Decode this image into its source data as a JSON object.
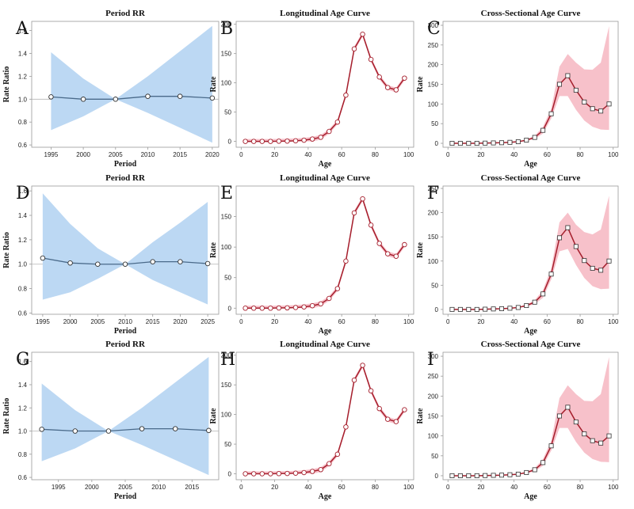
{
  "chart_data": [
    {
      "id": "A",
      "letter": "A",
      "type": "line",
      "title": "Period RR",
      "xlabel": "Period",
      "ylabel": "Rate Ratio",
      "xlim": [
        1992,
        2021
      ],
      "ylim": [
        0.58,
        1.68
      ],
      "xticks": [
        1995,
        2000,
        2005,
        2010,
        2015,
        2020
      ],
      "yticks": [
        0.6,
        0.8,
        1.0,
        1.2,
        1.4,
        1.6
      ],
      "x": [
        1995,
        2000,
        2005,
        2010,
        2015,
        2020
      ],
      "y": [
        1.02,
        1.0,
        1.0,
        1.025,
        1.025,
        1.01
      ],
      "ci_lower": [
        0.73,
        0.85,
        1.0,
        0.88,
        0.75,
        0.62
      ],
      "ci_upper": [
        1.41,
        1.18,
        1.0,
        1.2,
        1.42,
        1.64
      ],
      "reference": 1.0
    },
    {
      "id": "B",
      "letter": "B",
      "type": "line",
      "title": "Longitudinal Age Curve",
      "xlabel": "Age",
      "ylabel": "Rate",
      "xlim": [
        -3,
        103
      ],
      "ylim": [
        -10,
        205
      ],
      "xticks": [
        0,
        20,
        40,
        60,
        80,
        100
      ],
      "yticks": [
        0,
        50,
        100,
        150,
        200
      ],
      "x": [
        2.5,
        7.5,
        12.5,
        17.5,
        22.5,
        27.5,
        32.5,
        37.5,
        42.5,
        47.5,
        52.5,
        57.5,
        62.5,
        67.5,
        72.5,
        77.5,
        82.5,
        87.5,
        92.5,
        97.5
      ],
      "y": [
        0,
        0,
        0,
        0,
        0.3,
        0.5,
        1,
        2,
        4,
        7,
        17,
        33,
        79,
        158,
        183,
        140,
        110,
        92,
        88,
        108
      ],
      "ci_width": 4
    },
    {
      "id": "C",
      "letter": "C",
      "type": "line",
      "title": "Cross-Sectional Age Curve",
      "xlabel": "Age",
      "ylabel": "Rate",
      "xlim": [
        -3,
        103
      ],
      "ylim": [
        -10,
        310
      ],
      "xticks": [
        0,
        20,
        40,
        60,
        80,
        100
      ],
      "yticks": [
        0,
        50,
        100,
        150,
        200,
        250,
        300
      ],
      "x": [
        2.5,
        7.5,
        12.5,
        17.5,
        22.5,
        27.5,
        32.5,
        37.5,
        42.5,
        47.5,
        52.5,
        57.5,
        62.5,
        67.5,
        72.5,
        77.5,
        82.5,
        87.5,
        92.5,
        97.5
      ],
      "y": [
        0,
        0,
        0,
        0,
        0.5,
        1,
        1.5,
        2.5,
        4,
        8,
        15,
        33,
        75,
        150,
        172,
        135,
        105,
        88,
        82,
        100
      ],
      "ci_lower": [
        0,
        0,
        0,
        0,
        0.3,
        0.8,
        1,
        2,
        3,
        6,
        11,
        25,
        63,
        120,
        120,
        85,
        58,
        42,
        35,
        34
      ],
      "ci_upper": [
        0,
        0,
        0,
        0,
        0.7,
        1.2,
        2,
        3,
        5,
        10,
        19,
        42,
        88,
        195,
        227,
        205,
        188,
        187,
        205,
        298
      ]
    },
    {
      "id": "D",
      "letter": "D",
      "type": "line",
      "title": "Period RR",
      "xlabel": "Period",
      "ylabel": "Rate Ratio",
      "xlim": [
        1993,
        2027
      ],
      "ylim": [
        0.59,
        1.64
      ],
      "xticks": [
        1995,
        2000,
        2005,
        2010,
        2015,
        2020,
        2025
      ],
      "yticks": [
        0.6,
        0.8,
        1.0,
        1.2,
        1.4,
        1.6
      ],
      "x": [
        1995,
        2000,
        2005,
        2010,
        2015,
        2020,
        2025
      ],
      "y": [
        1.05,
        1.01,
        1.0,
        1.0,
        1.02,
        1.02,
        1.005
      ],
      "ci_lower": [
        0.71,
        0.77,
        0.88,
        1.0,
        0.87,
        0.77,
        0.67
      ],
      "ci_upper": [
        1.58,
        1.33,
        1.13,
        1.0,
        1.18,
        1.34,
        1.51
      ],
      "reference": 1.0
    },
    {
      "id": "E",
      "letter": "E",
      "type": "line",
      "title": "Longitudinal Age Curve",
      "xlabel": "Age",
      "ylabel": "Rate",
      "xlim": [
        -3,
        103
      ],
      "ylim": [
        -10,
        200
      ],
      "xticks": [
        0,
        20,
        40,
        60,
        80,
        100
      ],
      "yticks": [
        0,
        50,
        100,
        150
      ],
      "x": [
        2.5,
        7.5,
        12.5,
        17.5,
        22.5,
        27.5,
        32.5,
        37.5,
        42.5,
        47.5,
        52.5,
        57.5,
        62.5,
        67.5,
        72.5,
        77.5,
        82.5,
        87.5,
        92.5,
        97.5
      ],
      "y": [
        0,
        0,
        0,
        0,
        0.3,
        0.5,
        1,
        2,
        4,
        7,
        16,
        32,
        77,
        156,
        179,
        136,
        106,
        89,
        85,
        104
      ],
      "ci_width": 4
    },
    {
      "id": "F",
      "letter": "F",
      "type": "line",
      "title": "Cross-Sectional Age Curve",
      "xlabel": "Age",
      "ylabel": "Rate",
      "xlim": [
        -3,
        103
      ],
      "ylim": [
        -10,
        255
      ],
      "xticks": [
        0,
        20,
        40,
        60,
        80,
        100
      ],
      "yticks": [
        0,
        50,
        100,
        150,
        200,
        250
      ],
      "x": [
        2.5,
        7.5,
        12.5,
        17.5,
        22.5,
        27.5,
        32.5,
        37.5,
        42.5,
        47.5,
        52.5,
        57.5,
        62.5,
        67.5,
        72.5,
        77.5,
        82.5,
        87.5,
        92.5,
        97.5
      ],
      "y": [
        0,
        0,
        0,
        0,
        0.5,
        1,
        1.5,
        2.5,
        4,
        8,
        15,
        32,
        73,
        148,
        169,
        130,
        101,
        85,
        81,
        100
      ],
      "ci_lower": [
        0,
        0,
        0,
        0,
        0.3,
        0.8,
        1,
        2,
        3,
        6,
        11,
        24,
        62,
        120,
        125,
        92,
        65,
        48,
        42,
        43
      ],
      "ci_upper": [
        0,
        0,
        0,
        0,
        0.7,
        1.2,
        2,
        3,
        5,
        10,
        19,
        40,
        85,
        180,
        200,
        175,
        160,
        155,
        165,
        235
      ]
    },
    {
      "id": "G",
      "letter": "G",
      "type": "line",
      "title": "Period RR",
      "xlabel": "Period",
      "ylabel": "Rate Ratio",
      "xlim": [
        1991,
        2019
      ],
      "ylim": [
        0.58,
        1.68
      ],
      "xticks": [
        1995,
        2000,
        2005,
        2010,
        2015
      ],
      "yticks": [
        0.6,
        0.8,
        1.0,
        1.2,
        1.4,
        1.6
      ],
      "x": [
        1992.5,
        1997.5,
        2002.5,
        2007.5,
        2012.5,
        2017.5
      ],
      "y": [
        1.015,
        1.0,
        1.0,
        1.02,
        1.02,
        1.005
      ],
      "ci_lower": [
        0.74,
        0.85,
        1.0,
        0.88,
        0.75,
        0.62
      ],
      "ci_upper": [
        1.41,
        1.18,
        1.0,
        1.2,
        1.42,
        1.64
      ],
      "reference": 1.0
    },
    {
      "id": "H",
      "letter": "H",
      "type": "line",
      "title": "Longitudinal Age Curve",
      "xlabel": "Age",
      "ylabel": "Rate",
      "xlim": [
        -3,
        103
      ],
      "ylim": [
        -10,
        205
      ],
      "xticks": [
        0,
        20,
        40,
        60,
        80,
        100
      ],
      "yticks": [
        0,
        50,
        100,
        150,
        200
      ],
      "x": [
        2.5,
        7.5,
        12.5,
        17.5,
        22.5,
        27.5,
        32.5,
        37.5,
        42.5,
        47.5,
        52.5,
        57.5,
        62.5,
        67.5,
        72.5,
        77.5,
        82.5,
        87.5,
        92.5,
        97.5
      ],
      "y": [
        0,
        0,
        0,
        0,
        0.3,
        0.5,
        1,
        2,
        4,
        7,
        17,
        33,
        79,
        158,
        183,
        140,
        110,
        92,
        88,
        108
      ],
      "ci_width": 4
    },
    {
      "id": "I",
      "letter": "I",
      "type": "line",
      "title": "Cross-Sectional Age Curve",
      "xlabel": "Age",
      "ylabel": "Rate",
      "xlim": [
        -3,
        103
      ],
      "ylim": [
        -10,
        310
      ],
      "xticks": [
        0,
        20,
        40,
        60,
        80,
        100
      ],
      "yticks": [
        0,
        50,
        100,
        150,
        200,
        250,
        300
      ],
      "x": [
        2.5,
        7.5,
        12.5,
        17.5,
        22.5,
        27.5,
        32.5,
        37.5,
        42.5,
        47.5,
        52.5,
        57.5,
        62.5,
        67.5,
        72.5,
        77.5,
        82.5,
        87.5,
        92.5,
        97.5
      ],
      "y": [
        0,
        0,
        0,
        0,
        0.5,
        1,
        1.5,
        2.5,
        4,
        8,
        15,
        33,
        75,
        150,
        172,
        135,
        105,
        88,
        82,
        100
      ],
      "ci_lower": [
        0,
        0,
        0,
        0,
        0.3,
        0.8,
        1,
        2,
        3,
        6,
        11,
        25,
        63,
        120,
        120,
        85,
        58,
        42,
        35,
        34
      ],
      "ci_upper": [
        0,
        0,
        0,
        0,
        0.7,
        1.2,
        2,
        3,
        5,
        10,
        19,
        42,
        88,
        195,
        227,
        205,
        188,
        187,
        205,
        298
      ]
    }
  ],
  "colors": {
    "period_band": "#bcd8f3",
    "period_line": "#4a6a8a",
    "reference_line": "#b5b5b5",
    "age_band": "#f7c1ca",
    "age_line": "#a51e2c",
    "marker_fill": "#ffffff",
    "axis": "#9a9a9a"
  }
}
